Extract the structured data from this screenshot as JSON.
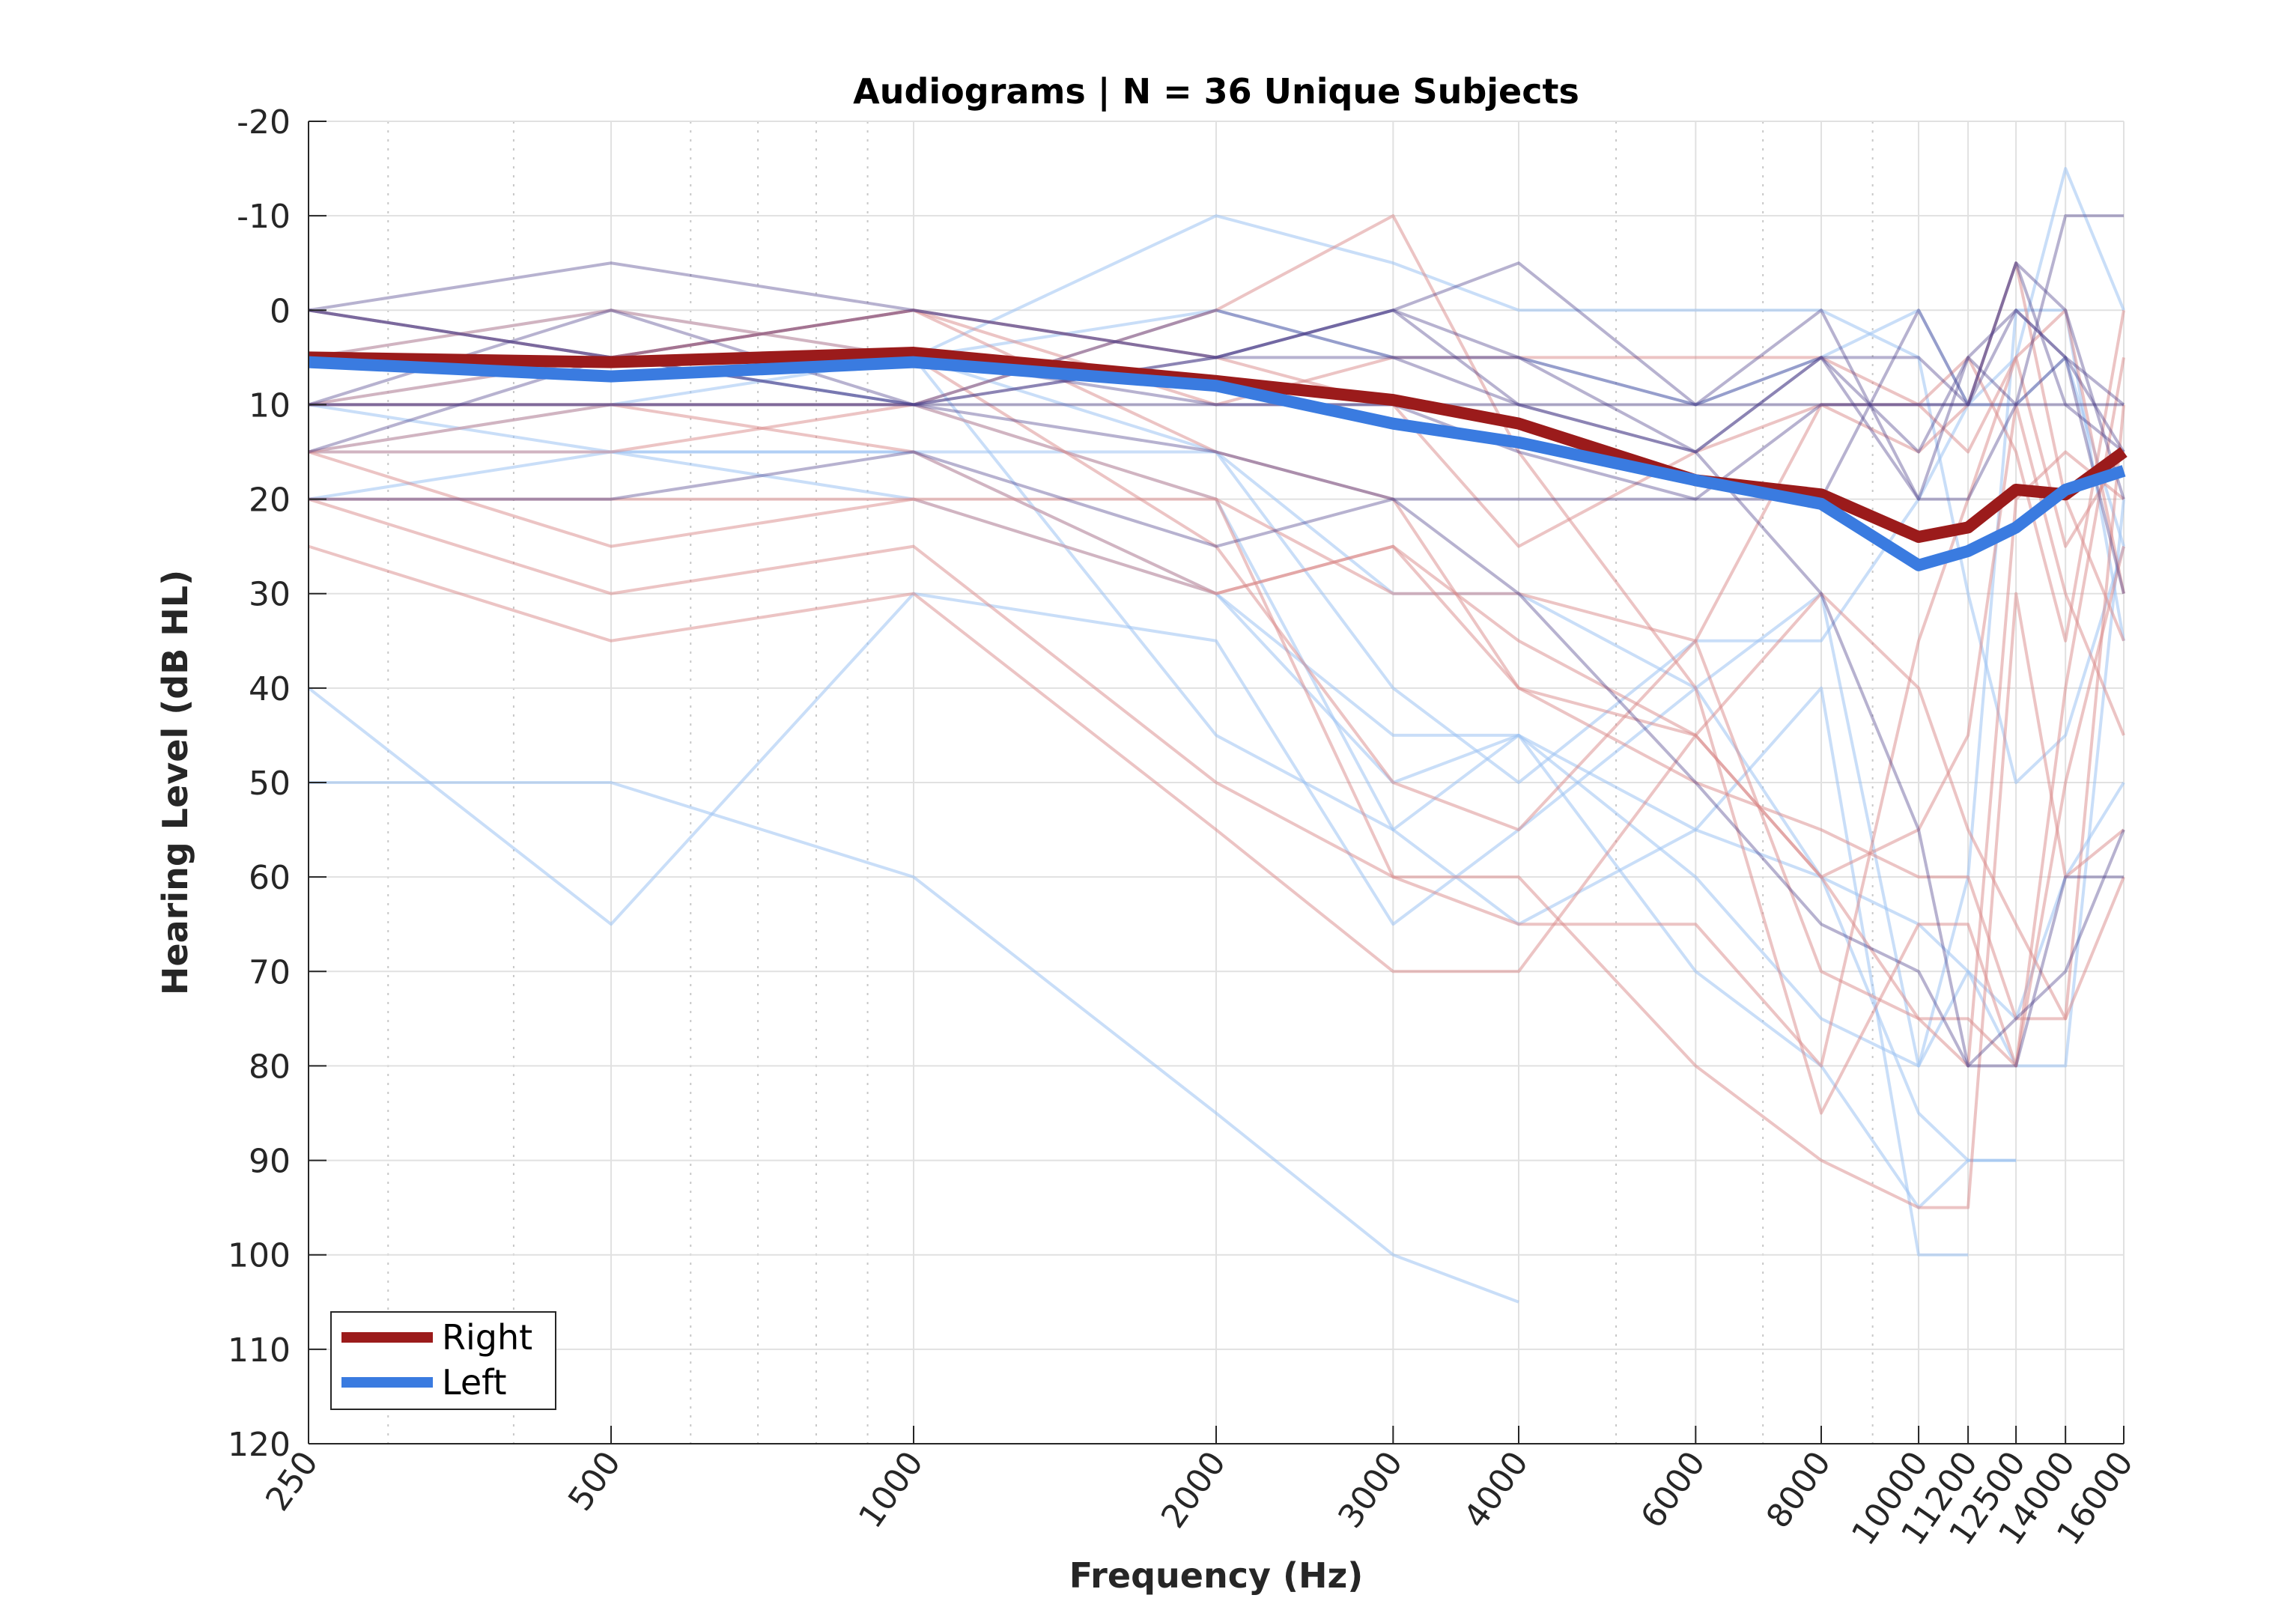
{
  "chart_data": {
    "type": "line",
    "title": "Audiograms | N = 36 Unique Subjects",
    "xlabel": "Frequency (Hz)",
    "ylabel": "Hearing Level (dB HL)",
    "x_scale": "log",
    "y_reversed": true,
    "ylim": [
      -20,
      120
    ],
    "yticks": [
      -20,
      -10,
      0,
      10,
      20,
      30,
      40,
      50,
      60,
      70,
      80,
      90,
      100,
      110,
      120
    ],
    "xticks": [
      250,
      500,
      1000,
      2000,
      3000,
      4000,
      6000,
      8000,
      10000,
      11200,
      12500,
      14000,
      16000
    ],
    "xtick_labels": [
      "250",
      "500",
      "1000",
      "2000",
      "3000",
      "4000",
      "6000",
      "8000",
      "10000",
      "11200",
      "12500",
      "14000",
      "16000"
    ],
    "grid": true,
    "legend_position": "bottom-left",
    "colors": {
      "right": "#9b1b1b",
      "left": "#3a7be0",
      "right_light": "#d98a8a",
      "left_light": "#9dc3f2",
      "mixed": "#4a3f8a"
    },
    "series": [
      {
        "name": "Right",
        "values": [
          5,
          5.5,
          4.5,
          7.5,
          9.5,
          12,
          18,
          19.5,
          24,
          23,
          19,
          19.5,
          15
        ]
      },
      {
        "name": "Left",
        "values": [
          5.5,
          7,
          5.5,
          8,
          12,
          14,
          18,
          20.5,
          27,
          25.5,
          23,
          19,
          17
        ]
      }
    ],
    "individual_right": [
      [
        5,
        5,
        0,
        5,
        10,
        25,
        15,
        10,
        15,
        10,
        -5,
        20,
        35
      ],
      [
        15,
        25,
        20,
        30,
        25,
        35,
        45,
        60,
        75,
        80,
        20,
        15,
        20
      ],
      [
        20,
        30,
        25,
        50,
        60,
        60,
        80,
        90,
        95,
        95,
        30,
        60,
        55
      ],
      [
        25,
        35,
        30,
        55,
        70,
        70,
        45,
        30,
        40,
        55,
        65,
        75,
        60
      ],
      [
        15,
        15,
        10,
        0,
        -10,
        15,
        40,
        85,
        65,
        65,
        80,
        50,
        25
      ],
      [
        10,
        5,
        0,
        15,
        20,
        40,
        45,
        60,
        55,
        45,
        10,
        30,
        45
      ],
      [
        5,
        0,
        5,
        25,
        50,
        55,
        35,
        10,
        10,
        15,
        5,
        25,
        15
      ],
      [
        15,
        10,
        15,
        30,
        25,
        40,
        50,
        55,
        60,
        60,
        75,
        75,
        10
      ],
      [
        0,
        5,
        0,
        10,
        5,
        5,
        5,
        5,
        10,
        5,
        15,
        35,
        0
      ],
      [
        20,
        20,
        20,
        20,
        30,
        30,
        35,
        70,
        75,
        75,
        80,
        40,
        5
      ],
      [
        10,
        10,
        10,
        20,
        60,
        65,
        65,
        80,
        35,
        20,
        5,
        0,
        30
      ]
    ],
    "individual_left": [
      [
        40,
        65,
        30,
        35,
        65,
        55,
        40,
        30,
        80,
        70,
        80,
        80,
        20
      ],
      [
        50,
        50,
        60,
        85,
        100,
        105
      ],
      [
        20,
        15,
        15,
        15,
        40,
        50,
        35,
        35,
        20,
        10,
        5,
        -15,
        0
      ],
      [
        5,
        5,
        5,
        -10,
        -5,
        0,
        0,
        0,
        5,
        30,
        50,
        45,
        25
      ],
      [
        15,
        15,
        15,
        30,
        45,
        45,
        55,
        60,
        85,
        90,
        90
      ],
      [
        10,
        15,
        20,
        30,
        50,
        45,
        60,
        75,
        80,
        60,
        0,
        0,
        35
      ],
      [
        5,
        0,
        5,
        0,
        5,
        5,
        10,
        5,
        0,
        10,
        10,
        5,
        25
      ],
      [
        0,
        5,
        10,
        20,
        55,
        45,
        70,
        80,
        95,
        90,
        90
      ],
      [
        10,
        5,
        5,
        15,
        30,
        30,
        40,
        60,
        65,
        70,
        75,
        60,
        50
      ],
      [
        15,
        10,
        5,
        45,
        55,
        65,
        55,
        40,
        100,
        100
      ]
    ],
    "individual_mixed": [
      [
        0,
        5,
        0,
        5,
        5,
        5,
        15,
        30,
        55,
        80,
        75,
        70,
        55
      ],
      [
        10,
        10,
        10,
        15,
        20,
        20,
        20,
        20,
        0,
        10,
        -5,
        0,
        20
      ],
      [
        5,
        5,
        5,
        10,
        10,
        15,
        20,
        10,
        10,
        10,
        -5,
        10,
        15
      ],
      [
        15,
        5,
        10,
        5,
        0,
        10,
        15,
        5,
        5,
        10,
        0,
        5,
        30
      ],
      [
        10,
        0,
        10,
        0,
        5,
        10,
        15,
        5,
        15,
        5,
        10,
        5,
        10
      ],
      [
        0,
        -5,
        0,
        5,
        0,
        5,
        10,
        0,
        20,
        20,
        10,
        -10,
        -10
      ],
      [
        20,
        20,
        15,
        25,
        20,
        30,
        50,
        65,
        70,
        80,
        80,
        60,
        60
      ],
      [
        10,
        10,
        10,
        10,
        10,
        10,
        10,
        10,
        10,
        10,
        10,
        10,
        10
      ],
      [
        0,
        5,
        10,
        5,
        0,
        -5,
        10,
        5,
        20,
        5,
        0,
        5,
        15
      ]
    ]
  }
}
